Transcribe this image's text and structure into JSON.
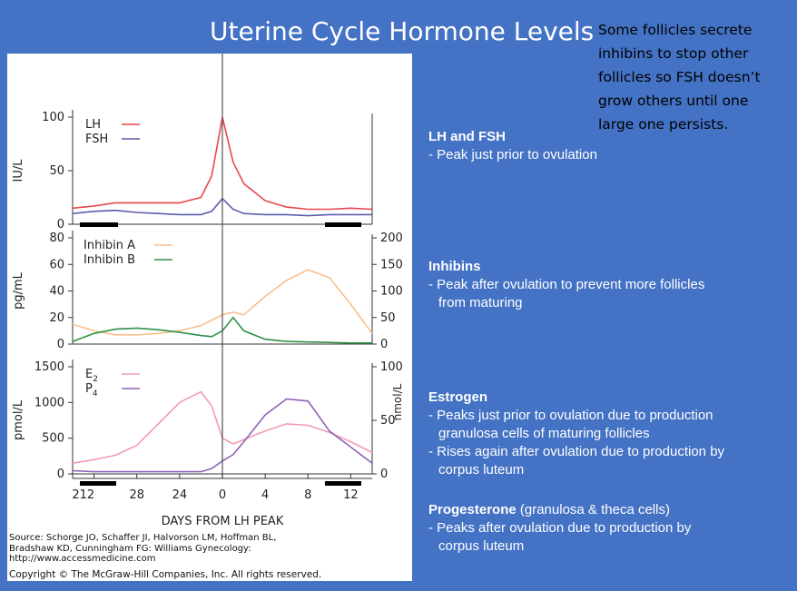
{
  "slide": {
    "title": "Uterine Cycle Hormone Levels",
    "note_lines": [
      "Some follicles secrete",
      "inhibins to stop other",
      "follicles so FSH doesn’t",
      "grow others until one",
      "large one persists."
    ]
  },
  "sections": {
    "lh_fsh": {
      "heading": "LH and FSH",
      "lines": [
        "- Peak just prior to ovulation"
      ]
    },
    "inhibins": {
      "heading": "Inhibins",
      "lines": [
        "- Peak after ovulation to prevent more follicles",
        "from maturing"
      ]
    },
    "estrogen": {
      "heading": "Estrogen",
      "lines": [
        "- Peaks just prior to ovulation due to production",
        "granulosa cells of maturing follicles",
        "- Rises again after ovulation due to production by",
        "corpus luteum"
      ]
    },
    "progesterone": {
      "heading": "Progesterone",
      "heading_suffix": " (granulosa & theca cells)",
      "lines": [
        "- Peaks after ovulation due to production by",
        "corpus luteum"
      ]
    }
  },
  "figure": {
    "xlabel": "DAYS FROM LH PEAK",
    "x_ticks": [
      "212",
      "28",
      "24",
      "0",
      "4",
      "8",
      "12"
    ],
    "source_lines": [
      "Source: Schorge JO, Schaffer JI, Halvorson LM, Hoffman BL,",
      "Bradshaw KD, Cunningham FG: Williams Gynecology:",
      "http://www.accessmedicine.com"
    ],
    "copyright": "Copyright © The McGraw-Hill Companies, Inc. All rights reserved.",
    "panel1": {
      "ylabel": "IU/L",
      "y_ticks": [
        "100",
        "50",
        "0"
      ],
      "legend": [
        "LH",
        "FSH"
      ],
      "colors": [
        "#e8474f",
        "#5c5cb0"
      ]
    },
    "panel2": {
      "ylabel": "pg/mL",
      "y_ticks": [
        "80",
        "60",
        "40",
        "20",
        "0"
      ],
      "y2_ticks": [
        "200",
        "150",
        "100",
        "50",
        "0"
      ],
      "legend": [
        "Inhibin A",
        "Inhibin B"
      ],
      "colors": [
        "#f8c08a",
        "#2e9147"
      ]
    },
    "panel3": {
      "ylabel": "pmol/L",
      "y2label": "nmol/L",
      "y_ticks": [
        "1500",
        "1000",
        "500",
        "0"
      ],
      "y2_ticks": [
        "100",
        "50",
        "0"
      ],
      "legend": [
        "E",
        "P"
      ],
      "legend_sub": [
        "2",
        "4"
      ],
      "colors": [
        "#f39ab4",
        "#8e62b8"
      ]
    }
  },
  "chart_data": [
    {
      "type": "line",
      "x": [
        -14,
        -12,
        -10,
        -8,
        -6,
        -4,
        -2,
        -1,
        0,
        1,
        2,
        4,
        6,
        8,
        10,
        12,
        14
      ],
      "series": [
        {
          "name": "LH",
          "values": [
            15,
            17,
            20,
            20,
            20,
            20,
            25,
            45,
            100,
            58,
            38,
            22,
            16,
            14,
            14,
            15,
            14
          ]
        },
        {
          "name": "FSH",
          "values": [
            10,
            12,
            13,
            11,
            10,
            9,
            9,
            12,
            24,
            14,
            10,
            9,
            9,
            8,
            9,
            9,
            9
          ]
        }
      ],
      "ylabel": "IU/L",
      "ylim": [
        0,
        100
      ]
    },
    {
      "type": "line",
      "x": [
        -14,
        -12,
        -10,
        -8,
        -6,
        -4,
        -2,
        -1,
        0,
        1,
        2,
        4,
        6,
        8,
        10,
        12,
        14
      ],
      "series": [
        {
          "name": "Inhibin A",
          "values": [
            15,
            10,
            7,
            7,
            8,
            10,
            14,
            18,
            22,
            24,
            22,
            36,
            48,
            56,
            50,
            30,
            8
          ]
        },
        {
          "name": "Inhibin B",
          "values": [
            5,
            20,
            28,
            30,
            27,
            22,
            16,
            14,
            25,
            50,
            25,
            9,
            5,
            4,
            3,
            2,
            2
          ]
        }
      ],
      "ylabel": "pg/mL",
      "ylim": [
        0,
        80
      ],
      "y2lim": [
        0,
        200
      ]
    },
    {
      "type": "line",
      "x": [
        -14,
        -12,
        -10,
        -8,
        -6,
        -4,
        -2,
        -1,
        0,
        1,
        2,
        4,
        6,
        8,
        10,
        12,
        14
      ],
      "series": [
        {
          "name": "E2",
          "values": [
            150,
            200,
            260,
            400,
            700,
            1000,
            1150,
            950,
            500,
            420,
            480,
            600,
            700,
            680,
            580,
            450,
            300
          ]
        },
        {
          "name": "P4",
          "values": [
            3,
            2,
            2,
            2,
            2,
            2,
            2,
            5,
            12,
            18,
            30,
            55,
            70,
            68,
            40,
            25,
            10
          ]
        }
      ],
      "ylabel": "pmol/L",
      "ylim": [
        0,
        1500
      ],
      "y2label": "nmol/L",
      "y2lim": [
        0,
        100
      ]
    }
  ]
}
